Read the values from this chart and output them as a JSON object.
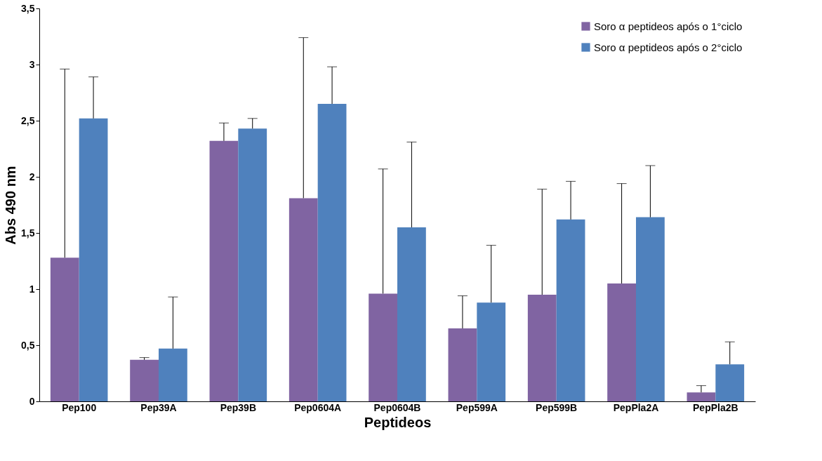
{
  "chart_data": {
    "type": "bar",
    "xlabel": "Peptideos",
    "ylabel": "Abs 490 nm",
    "categories": [
      "Pep100",
      "Pep39A",
      "Pep39B",
      "Pep0604A",
      "Pep0604B",
      "Pep599A",
      "Pep599B",
      "PepPla2A",
      "PepPla2B"
    ],
    "series": [
      {
        "name": "Soro α peptideos após o 1°ciclo",
        "color": "#8064a2",
        "values": [
          1.28,
          0.37,
          2.32,
          1.81,
          0.96,
          0.65,
          0.95,
          1.05,
          0.08
        ],
        "errors": [
          [
            1.28,
            2.96
          ],
          [
            0.37,
            0.39
          ],
          [
            2.32,
            2.48
          ],
          [
            1.81,
            3.24
          ],
          [
            0.96,
            2.07
          ],
          [
            0.65,
            0.94
          ],
          [
            0.95,
            1.89
          ],
          [
            1.05,
            1.94
          ],
          [
            0.08,
            0.14
          ]
        ]
      },
      {
        "name": "Soro α peptideos após o 2°ciclo",
        "color": "#4f81bd",
        "values": [
          2.52,
          0.47,
          2.43,
          2.65,
          1.55,
          0.88,
          1.62,
          1.64,
          0.33
        ],
        "errors": [
          [
            2.52,
            2.89
          ],
          [
            0.47,
            0.93
          ],
          [
            2.43,
            2.52
          ],
          [
            2.65,
            2.98
          ],
          [
            1.55,
            2.31
          ],
          [
            0.88,
            1.39
          ],
          [
            1.62,
            1.96
          ],
          [
            1.64,
            2.1
          ],
          [
            0.33,
            0.53
          ]
        ]
      }
    ],
    "ylim": [
      0,
      3.5
    ],
    "yticks": [
      0,
      {
        "value": 0.5,
        "label": "0,5"
      },
      1,
      {
        "value": 1.5,
        "label": "1,5"
      },
      2,
      {
        "value": 2.5,
        "label": "2,5"
      },
      3,
      {
        "value": 3.5,
        "label": "3,5"
      }
    ],
    "grid": false,
    "legend": "top right"
  }
}
